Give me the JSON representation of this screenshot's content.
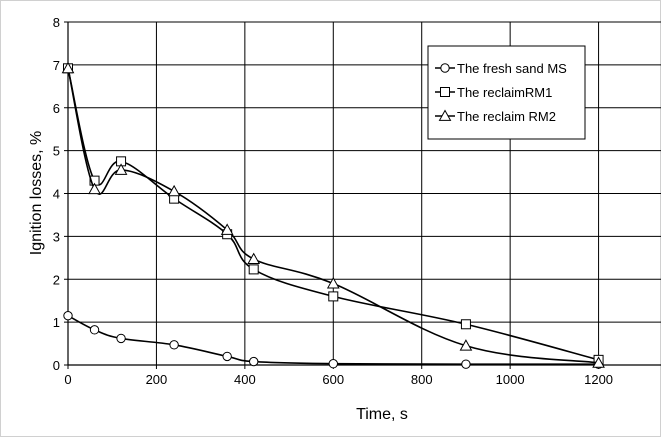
{
  "chart_data": {
    "type": "line",
    "title": "",
    "xlabel": "Time, s",
    "ylabel": "Ignition losses, %",
    "xlim": [
      0,
      1400
    ],
    "ylim": [
      0,
      8
    ],
    "xticks": [
      0,
      200,
      400,
      600,
      800,
      1000,
      1200,
      1400
    ],
    "yticks": [
      0,
      1,
      2,
      3,
      4,
      5,
      6,
      7,
      8
    ],
    "grid": true,
    "legend_position": "top-right",
    "series": [
      {
        "name": "The fresh sand MS",
        "marker": "circle",
        "color": "#000000",
        "x": [
          0,
          60,
          120,
          240,
          360,
          420,
          600,
          900,
          1200
        ],
        "y": [
          1.15,
          0.82,
          0.62,
          0.47,
          0.2,
          0.08,
          0.03,
          0.02,
          0.02
        ]
      },
      {
        "name": "The reclaimRM1",
        "marker": "square",
        "color": "#000000",
        "x": [
          0,
          60,
          120,
          240,
          360,
          420,
          600,
          900,
          1200
        ],
        "y": [
          6.92,
          4.3,
          4.75,
          3.88,
          3.05,
          2.23,
          1.6,
          0.95,
          0.12
        ]
      },
      {
        "name": "The reclaim RM2",
        "marker": "triangle",
        "color": "#000000",
        "x": [
          0,
          60,
          120,
          240,
          360,
          420,
          600,
          900,
          1200
        ],
        "y": [
          6.92,
          4.1,
          4.55,
          4.05,
          3.15,
          2.47,
          1.9,
          0.45,
          0.05
        ]
      }
    ]
  }
}
